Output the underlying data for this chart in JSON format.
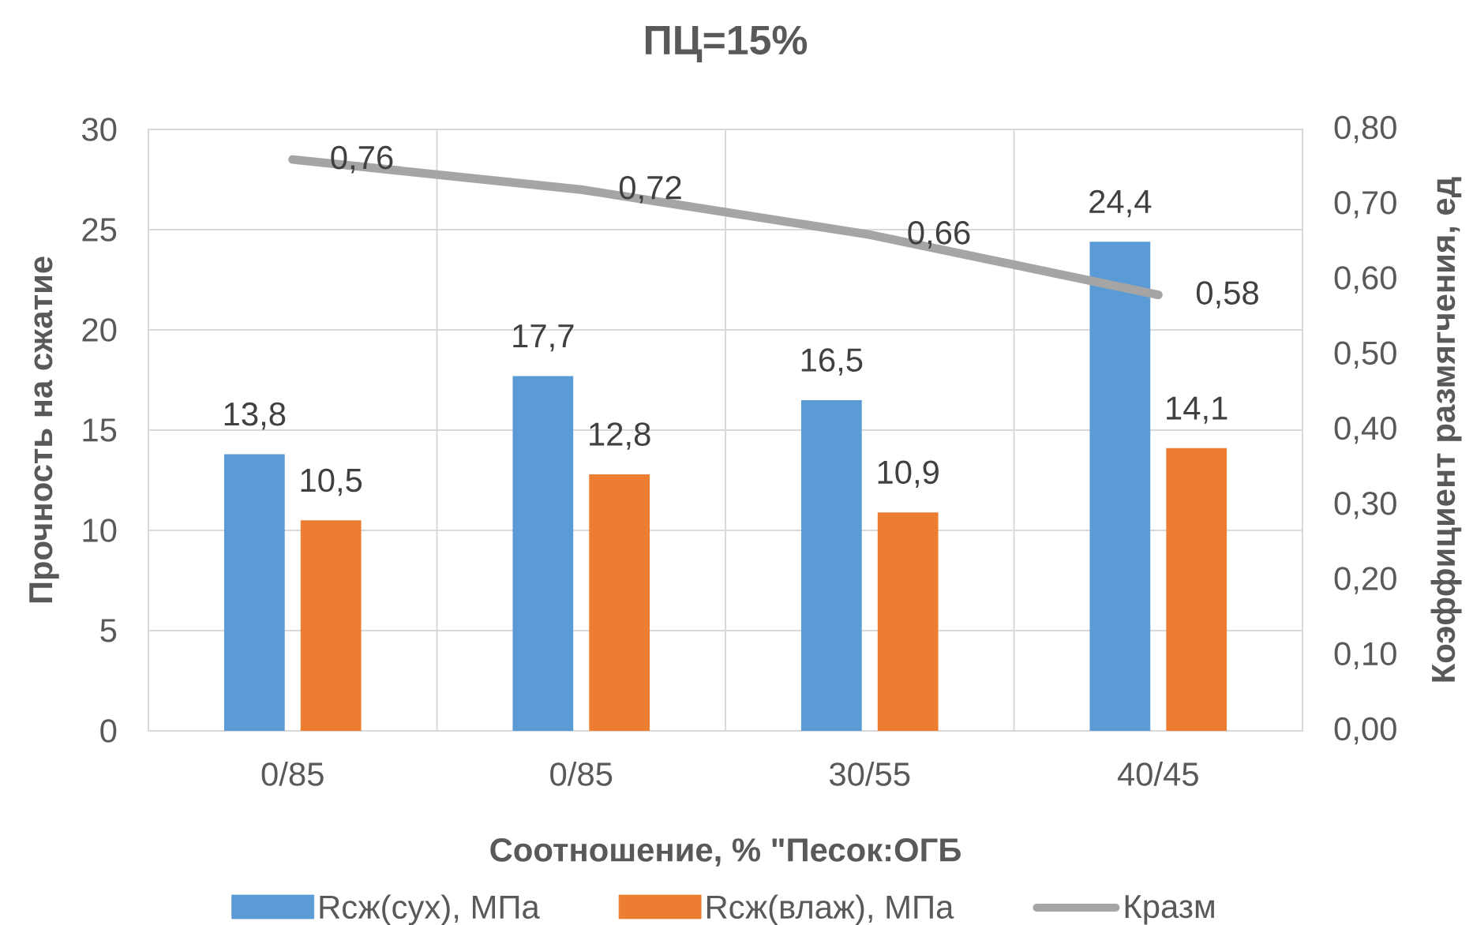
{
  "chart_data": {
    "type": "bar",
    "title": "ПЦ=15%",
    "xlabel": "Соотношение, % \"Песок:ОГБ",
    "ylabel": "Прочность на сжатие",
    "y2label": "Коэффициент размягчения, ед",
    "categories": [
      "0/85",
      "0/85",
      "30/55",
      "40/45"
    ],
    "series": [
      {
        "name": "Rсж(сух), МПа",
        "color": "#5b9bd5",
        "values": [
          13.8,
          17.7,
          16.5,
          24.4
        ],
        "value_labels": [
          "13,8",
          "17,7",
          "16,5",
          "24,4"
        ]
      },
      {
        "name": "Rсж(влаж), МПа",
        "color": "#ed7d31",
        "values": [
          10.5,
          12.8,
          10.9,
          14.1
        ],
        "value_labels": [
          "10,5",
          "12,8",
          "10,9",
          "14,1"
        ]
      },
      {
        "name": "Кразм",
        "type": "line",
        "axis": "y2",
        "color": "#a5a5a5",
        "values": [
          0.76,
          0.72,
          0.66,
          0.58
        ],
        "value_labels": [
          "0,76",
          "0,72",
          "0,66",
          "0,58"
        ]
      }
    ],
    "ylim": [
      0,
      30
    ],
    "yticks": [
      0,
      5,
      10,
      15,
      20,
      25,
      30
    ],
    "y2lim": [
      0,
      0.8
    ],
    "y2ticks": [
      {
        "value": 0,
        "label": "0,00"
      },
      {
        "value": 0.1,
        "label": "0,10"
      },
      {
        "value": 0.2,
        "label": "0,20"
      },
      {
        "value": 0.3,
        "label": "0,30"
      },
      {
        "value": 0.4,
        "label": "0,40"
      },
      {
        "value": 0.5,
        "label": "0,50"
      },
      {
        "value": 0.6,
        "label": "0,60"
      },
      {
        "value": 0.7,
        "label": "0,70"
      },
      {
        "value": 0.8,
        "label": "0,80"
      }
    ],
    "grid": true,
    "legend": "bottom"
  }
}
